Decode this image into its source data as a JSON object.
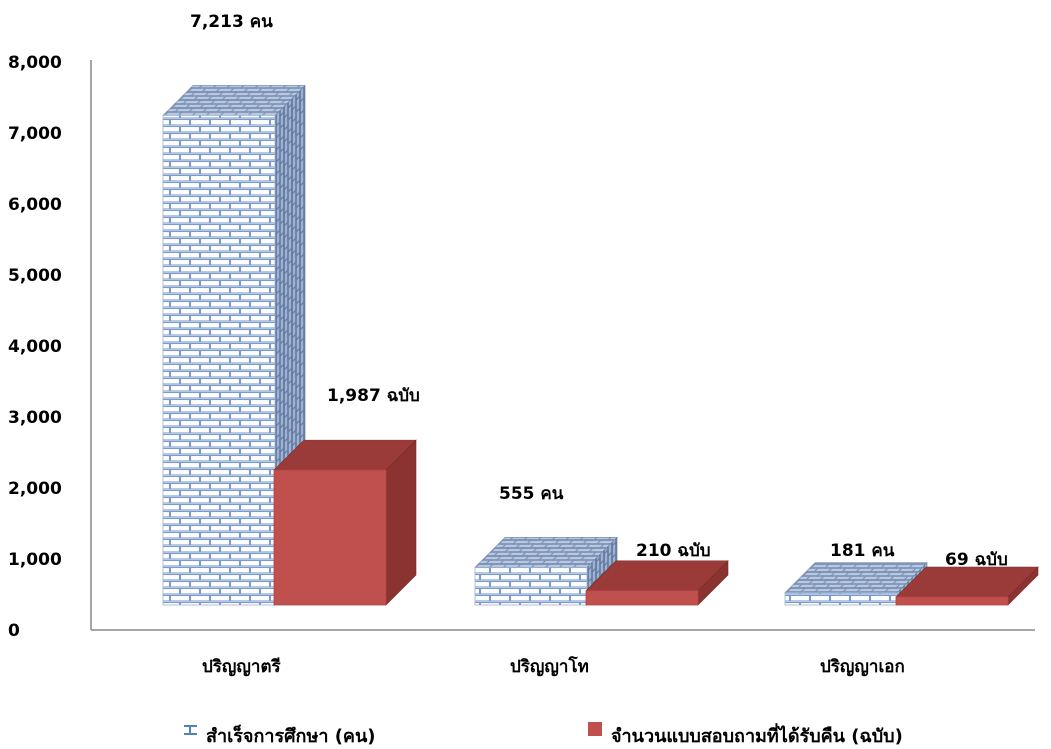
{
  "chart_data": {
    "type": "bar",
    "categories": [
      "ปริญญาตรี",
      "ปริญญาโท",
      "ปริญญาเอก"
    ],
    "series": [
      {
        "name": "สำเร็จการศึกษา (คน)",
        "values": [
          7213,
          555,
          181
        ],
        "labels": [
          "7,213 คน",
          "555 คน",
          "181 คน"
        ],
        "color": "#c6d3e8"
      },
      {
        "name": "จำนวนแบบสอบถามที่ได้รับคืน (ฉบับ)",
        "values": [
          1987,
          210,
          69
        ],
        "labels": [
          "1,987 ฉบับ",
          "210 ฉบับ",
          "69 ฉบับ"
        ],
        "color": "#c0504d"
      }
    ],
    "yticks": [
      "0",
      "1,000",
      "2,000",
      "3,000",
      "4,000",
      "5,000",
      "6,000",
      "7,000",
      "8,000"
    ],
    "ylim": [
      0,
      8000
    ],
    "grid": false,
    "legend_position": "bottom"
  }
}
